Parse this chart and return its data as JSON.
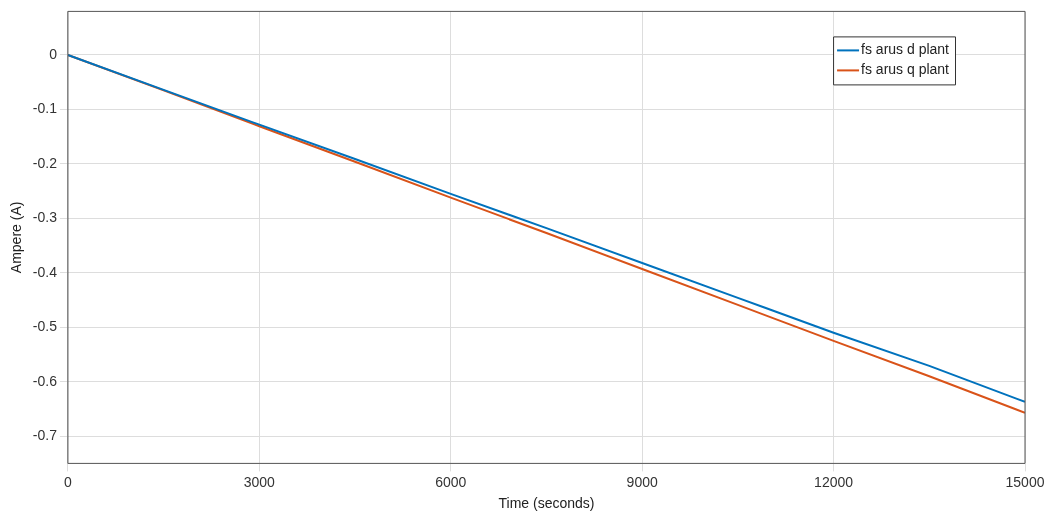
{
  "chart_data": {
    "type": "line",
    "xlabel": "Time (seconds)",
    "ylabel": "Ampere (A)",
    "x": [
      0,
      1500,
      3000,
      4500,
      6000,
      7500,
      9000,
      10500,
      12000,
      13500,
      15000
    ],
    "series": [
      {
        "name": "fs arus d plant",
        "color": "#0072bd",
        "values": [
          0,
          -0.064,
          -0.128,
          -0.191,
          -0.255,
          -0.318,
          -0.382,
          -0.446,
          -0.51,
          -0.571,
          -0.637
        ]
      },
      {
        "name": "fs arus q plant",
        "color": "#d95319",
        "values": [
          0,
          -0.065,
          -0.131,
          -0.196,
          -0.262,
          -0.327,
          -0.393,
          -0.459,
          -0.525,
          -0.59,
          -0.657
        ]
      }
    ],
    "xlim": [
      0,
      15000
    ],
    "xticks": [
      0,
      3000,
      6000,
      9000,
      12000,
      15000
    ],
    "ylim": [
      -0.75,
      0.08
    ],
    "yticks": [
      -0.7,
      -0.6,
      -0.5,
      -0.4,
      -0.3,
      -0.2,
      -0.1,
      0
    ],
    "grid": true,
    "legend": "top right",
    "marker": "none",
    "line_style": "solid"
  }
}
